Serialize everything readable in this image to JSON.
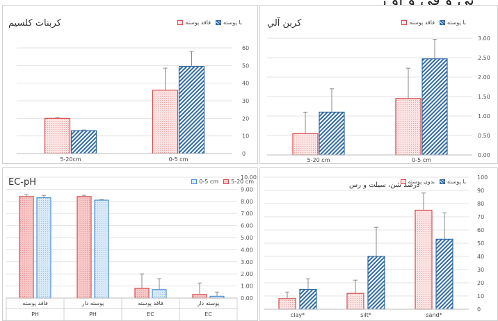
{
  "header_fragment": "ئي و في و او ر",
  "chart_data": [
    {
      "id": "calcium",
      "type": "bar",
      "title": "كربنات كلسيم",
      "categories": [
        "5-20cm",
        "0-5 cm"
      ],
      "series": [
        {
          "name": "فاقد پوسته",
          "values": [
            20,
            36
          ],
          "errors": [
            0.4,
            12.5
          ],
          "color": "#d94b4b",
          "fill": "#fbe3e3",
          "pattern": "dots"
        },
        {
          "name": "با پوسته",
          "values": [
            13,
            49.5
          ],
          "errors": [
            0.4,
            8.5
          ],
          "color": "#2e6aa8",
          "fill": "#2e6aa8",
          "pattern": "hatch"
        }
      ],
      "ylim": [
        0,
        60
      ],
      "yticks": [
        "0",
        "10",
        "20",
        "30",
        "40",
        "50",
        "60"
      ],
      "grid": true,
      "legend": "top-right"
    },
    {
      "id": "carbon",
      "type": "bar",
      "title": "كربن آلي",
      "categories": [
        "5-20 cm",
        "0-5 cm"
      ],
      "series": [
        {
          "name": "فاقد پوسته",
          "values": [
            0.55,
            1.45
          ],
          "errors": [
            0.55,
            0.78
          ],
          "color": "#d94b4b",
          "fill": "#fbe3e3",
          "pattern": "dots"
        },
        {
          "name": "با پوسته",
          "values": [
            1.1,
            2.47
          ],
          "errors": [
            0.6,
            0.5
          ],
          "color": "#2e6aa8",
          "fill": "#2e6aa8",
          "pattern": "hatch"
        }
      ],
      "ylim": [
        0,
        3
      ],
      "yticks": [
        "0.00",
        "0.50",
        "1.00",
        "1.50",
        "2.00",
        "2.50",
        "3.00"
      ],
      "grid": true,
      "legend": "top-right"
    },
    {
      "id": "ecph",
      "type": "bar",
      "title": "EC-pH",
      "categories": [
        "فاقد پوسته",
        "پوسته دار",
        "فاقد پوسته",
        "پوسته دار"
      ],
      "category_groups": [
        "PH",
        "PH",
        "EC",
        "EC"
      ],
      "series": [
        {
          "name": "5-20 cm",
          "values": [
            8.4,
            8.4,
            0.8,
            0.3
          ],
          "errors": [
            0.15,
            0.1,
            1.2,
            0.95
          ],
          "color": "#d94b4b",
          "fill": "#f7c7c7",
          "pattern": "dots"
        },
        {
          "name": "0-5 cm",
          "values": [
            8.3,
            8.1,
            0.7,
            0.15
          ],
          "errors": [
            0.2,
            0.05,
            0.9,
            0.35
          ],
          "color": "#4b8fd6",
          "fill": "#d9e9f8",
          "pattern": "dots"
        }
      ],
      "ylim": [
        0,
        10
      ],
      "yticks": [
        "0.00",
        "1.00",
        "2.00",
        "3.00",
        "4.00",
        "5.00",
        "6.00",
        "7.00",
        "8.00",
        "9.00",
        "10.00"
      ],
      "grid": true,
      "legend": "top-right"
    },
    {
      "id": "texture",
      "type": "bar",
      "title": "درصد شن، سیلت و رس",
      "categories": [
        "clay*",
        "silt*",
        "sand*"
      ],
      "series": [
        {
          "name": "بدون پوسته",
          "values": [
            8,
            12,
            75
          ],
          "errors": [
            5,
            10,
            13
          ],
          "color": "#d94b4b",
          "fill": "#fbe3e3",
          "pattern": "dots"
        },
        {
          "name": "با پوسته",
          "values": [
            15,
            40,
            53
          ],
          "errors": [
            8,
            22,
            20
          ],
          "color": "#2e6aa8",
          "fill": "#2e6aa8",
          "pattern": "hatch"
        }
      ],
      "ylim": [
        0,
        100
      ],
      "yticks": [
        "0",
        "10",
        "20",
        "30",
        "40",
        "50",
        "60",
        "70",
        "80",
        "90",
        "100"
      ],
      "grid": true,
      "legend": "top-right"
    }
  ]
}
